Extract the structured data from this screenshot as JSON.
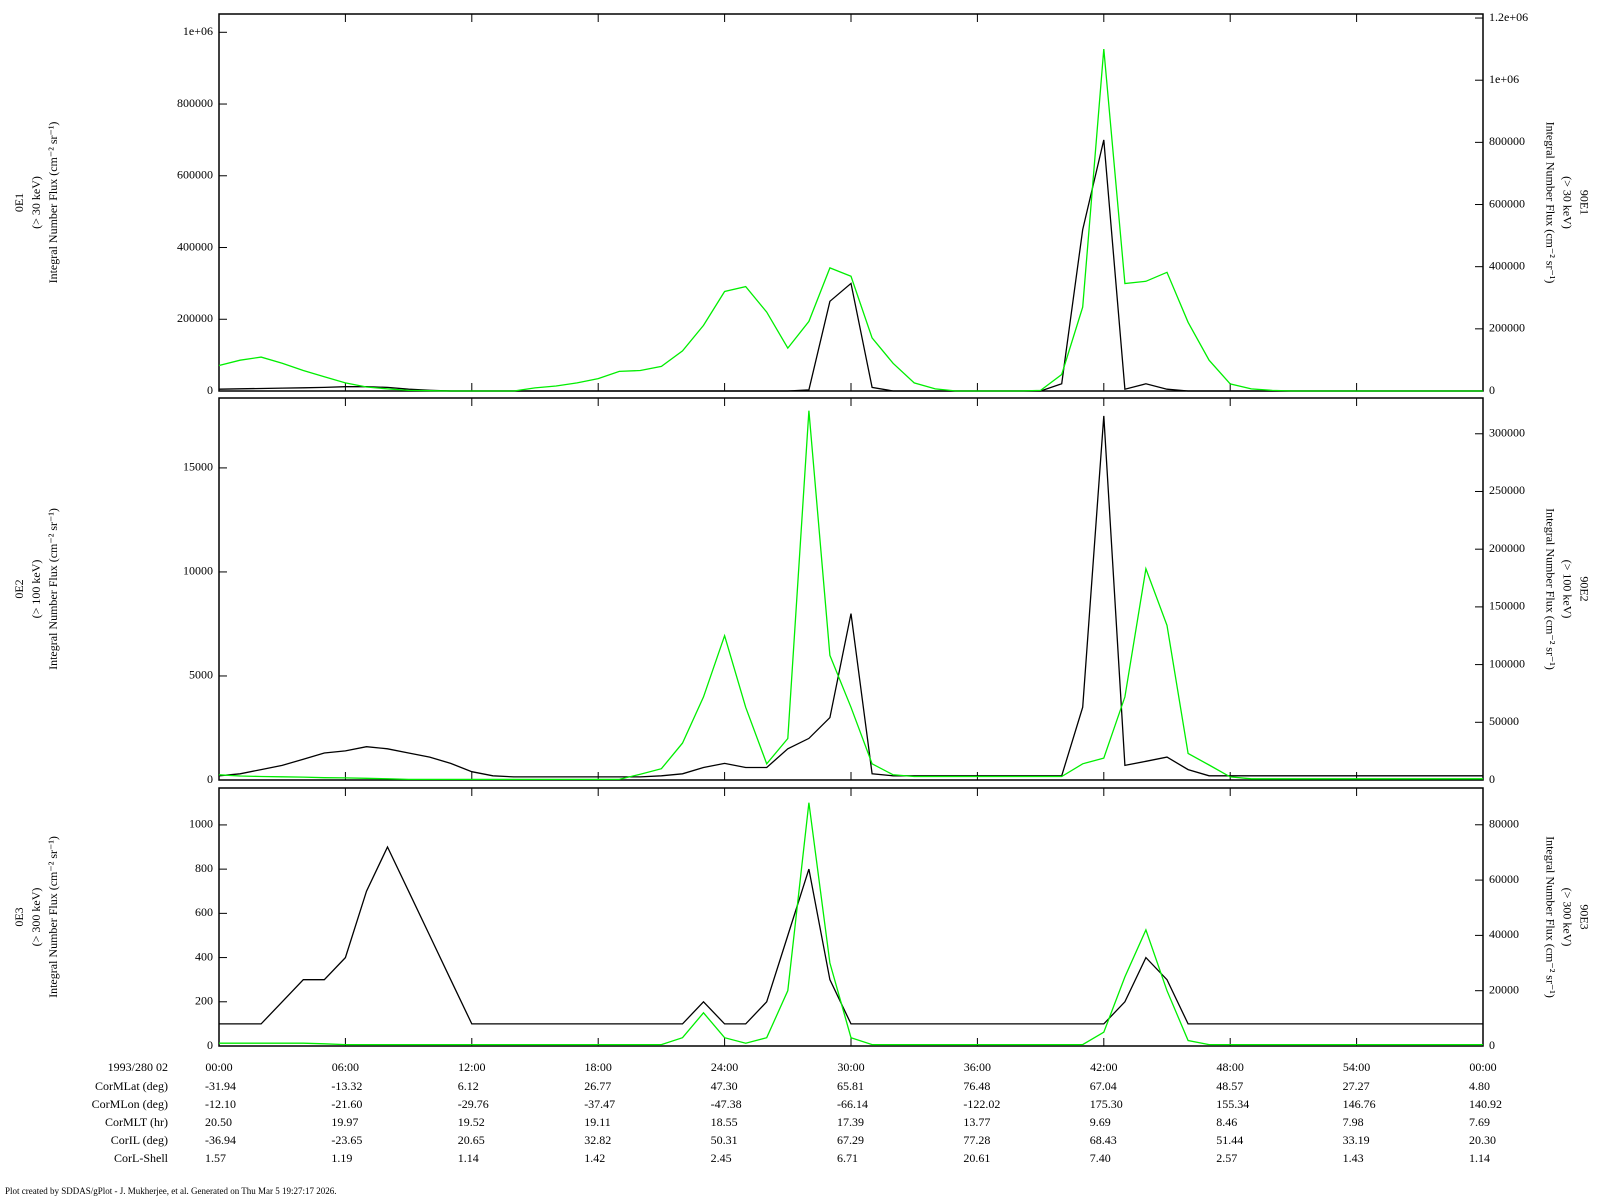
{
  "chart_data": [
    {
      "type": "line",
      "ylabel": [
        "0E1",
        "(> 30 keV)",
        "Integral Number Flux (cm⁻² sr⁻¹)"
      ],
      "y2label": [
        "90E1",
        "(> 30 keV)",
        "Integral Number Flux (cm⁻² sr⁻¹)"
      ],
      "x": [
        0,
        1,
        2,
        3,
        4,
        5,
        6,
        7,
        8,
        9,
        10,
        11,
        12,
        13,
        14,
        15,
        16,
        17,
        18,
        19,
        20,
        21,
        22,
        23,
        24,
        25,
        26,
        27,
        28,
        29,
        30,
        31,
        32,
        33,
        34,
        35,
        36,
        37,
        38,
        39,
        40,
        41,
        42,
        43,
        44,
        45,
        46,
        47,
        48,
        49,
        50,
        51,
        52,
        53,
        54,
        55,
        56,
        57,
        58,
        59,
        60
      ],
      "xlim": [
        0,
        60
      ],
      "xticks": [
        0,
        6,
        12,
        18,
        24,
        30,
        36,
        42,
        48,
        54,
        60
      ],
      "ylim": [
        0,
        1051000
      ],
      "yticks": [
        0,
        200000,
        400000,
        600000,
        800000,
        {
          "value": 1000000,
          "label": "1e+06"
        }
      ],
      "y2lim": [
        0,
        1213000
      ],
      "y2ticks": [
        0,
        200000,
        400000,
        600000,
        800000,
        {
          "value": 1000000,
          "label": "1e+06"
        },
        {
          "value": 1200000,
          "label": "1.2e+06"
        }
      ],
      "series": [
        {
          "name": "0E1",
          "color": "#000000",
          "values": [
            5000,
            6000,
            7000,
            8000,
            9000,
            10000,
            12000,
            12000,
            10000,
            5000,
            2000,
            0,
            0,
            0,
            0,
            0,
            0,
            0,
            0,
            0,
            0,
            0,
            0,
            0,
            0,
            0,
            0,
            0,
            3000,
            250000,
            300000,
            10000,
            0,
            0,
            0,
            0,
            0,
            0,
            0,
            0,
            20000,
            450000,
            700000,
            5000,
            20000,
            5000,
            0,
            0,
            0,
            0,
            0,
            0,
            0,
            0,
            0,
            0,
            0,
            0,
            0,
            0,
            0
          ]
        },
        {
          "name": "90E1",
          "color": "#00ee00",
          "axis": "y2",
          "values": [
            82000,
            99000,
            109000,
            89000,
            66000,
            46000,
            26000,
            13000,
            6600,
            2000,
            1000,
            0,
            0,
            0,
            0,
            10000,
            16000,
            26000,
            40000,
            63000,
            66000,
            79000,
            129000,
            211000,
            320000,
            336000,
            254000,
            138000,
            224000,
            396000,
            369000,
            171000,
            89000,
            26000,
            6600,
            0,
            0,
            0,
            0,
            2000,
            53000,
            270000,
            1100000,
            346000,
            353000,
            382000,
            221000,
            99000,
            23000,
            6600,
            2000,
            0,
            0,
            0,
            0,
            0,
            0,
            0,
            0,
            0,
            0
          ]
        }
      ]
    },
    {
      "type": "line",
      "ylabel": [
        "0E2",
        "(> 100 keV)",
        "Integral Number Flux (cm⁻² sr⁻¹)"
      ],
      "y2label": [
        "90E2",
        "(> 100 keV)",
        "Integral Number Flux (cm⁻² sr⁻¹)"
      ],
      "x": [
        0,
        1,
        2,
        3,
        4,
        5,
        6,
        7,
        8,
        9,
        10,
        11,
        12,
        13,
        14,
        15,
        16,
        17,
        18,
        19,
        20,
        21,
        22,
        23,
        24,
        25,
        26,
        27,
        28,
        29,
        30,
        31,
        32,
        33,
        34,
        35,
        36,
        37,
        38,
        39,
        40,
        41,
        42,
        43,
        44,
        45,
        46,
        47,
        48,
        49,
        50,
        51,
        52,
        53,
        54,
        55,
        56,
        57,
        58,
        59,
        60
      ],
      "xlim": [
        0,
        60
      ],
      "xticks": [
        0,
        6,
        12,
        18,
        24,
        30,
        36,
        42,
        48,
        54,
        60
      ],
      "ylim": [
        0,
        18360
      ],
      "yticks": [
        0,
        5000,
        10000,
        15000
      ],
      "y2lim": [
        0,
        331000
      ],
      "y2ticks": [
        0,
        50000,
        100000,
        150000,
        200000,
        250000,
        300000
      ],
      "series": [
        {
          "name": "0E2",
          "color": "#000000",
          "values": [
            200,
            300,
            500,
            700,
            1000,
            1300,
            1400,
            1600,
            1500,
            1300,
            1100,
            800,
            400,
            200,
            150,
            150,
            150,
            150,
            150,
            150,
            150,
            200,
            300,
            600,
            800,
            600,
            600,
            1500,
            2000,
            3000,
            8000,
            300,
            200,
            200,
            200,
            200,
            200,
            200,
            200,
            200,
            200,
            3500,
            17500,
            700,
            900,
            1100,
            500,
            200,
            200,
            200,
            200,
            200,
            200,
            200,
            200,
            200,
            200,
            200,
            200,
            200,
            200
          ]
        },
        {
          "name": "90E2",
          "color": "#00ee00",
          "axis": "y2",
          "values": [
            4500,
            3500,
            3000,
            2800,
            2500,
            2000,
            1800,
            1500,
            1000,
            500,
            500,
            500,
            500,
            500,
            500,
            500,
            500,
            500,
            500,
            500,
            5000,
            9800,
            32000,
            72000,
            125000,
            63000,
            14000,
            36000,
            320000,
            108000,
            63000,
            14000,
            4500,
            3000,
            3000,
            3000,
            3000,
            3000,
            3000,
            3000,
            3000,
            14000,
            19000,
            72000,
            183000,
            134000,
            23000,
            13000,
            2700,
            1000,
            1000,
            1000,
            1000,
            1000,
            1000,
            1000,
            1000,
            1000,
            1000,
            1000,
            1000
          ]
        }
      ]
    },
    {
      "type": "line",
      "ylabel": [
        "0E3",
        "(> 300 keV)",
        "Integral Number Flux (cm⁻² sr⁻¹)"
      ],
      "y2label": [
        "90E3",
        "(> 300 keV)",
        "Integral Number Flux (cm⁻² sr⁻¹)"
      ],
      "x": [
        0,
        1,
        2,
        3,
        4,
        5,
        6,
        7,
        8,
        9,
        10,
        11,
        12,
        13,
        14,
        15,
        16,
        17,
        18,
        19,
        20,
        21,
        22,
        23,
        24,
        25,
        26,
        27,
        28,
        29,
        30,
        31,
        32,
        33,
        34,
        35,
        36,
        37,
        38,
        39,
        40,
        41,
        42,
        43,
        44,
        45,
        46,
        47,
        48,
        49,
        50,
        51,
        52,
        53,
        54,
        55,
        56,
        57,
        58,
        59,
        60
      ],
      "xlim": [
        0,
        60
      ],
      "xlabel": "1993/280 02",
      "xticks": [
        {
          "value": 0,
          "label": "00:00"
        },
        {
          "value": 6,
          "label": "06:00"
        },
        {
          "value": 12,
          "label": "12:00"
        },
        {
          "value": 18,
          "label": "18:00"
        },
        {
          "value": 24,
          "label": "24:00"
        },
        {
          "value": 30,
          "label": "30:00"
        },
        {
          "value": 36,
          "label": "36:00"
        },
        {
          "value": 42,
          "label": "42:00"
        },
        {
          "value": 48,
          "label": "48:00"
        },
        {
          "value": 54,
          "label": "54:00"
        },
        {
          "value": 60,
          "label": "00:00"
        }
      ],
      "ylim": [
        0,
        1167
      ],
      "yticks": [
        0,
        200,
        400,
        600,
        800,
        1000
      ],
      "y2lim": [
        0,
        93300
      ],
      "y2ticks": [
        0,
        20000,
        40000,
        60000,
        80000
      ],
      "series": [
        {
          "name": "0E3",
          "color": "#000000",
          "values": [
            100,
            100,
            100,
            200,
            300,
            300,
            400,
            700,
            900,
            700,
            500,
            300,
            100,
            100,
            100,
            100,
            100,
            100,
            100,
            100,
            100,
            100,
            100,
            200,
            100,
            100,
            200,
            500,
            800,
            300,
            100,
            100,
            100,
            100,
            100,
            100,
            100,
            100,
            100,
            100,
            100,
            100,
            100,
            200,
            400,
            300,
            100,
            100,
            100,
            100,
            100,
            100,
            100,
            100,
            100,
            100,
            100,
            100,
            100,
            100,
            100
          ]
        },
        {
          "name": "90E3",
          "color": "#00ee00",
          "axis": "y2",
          "values": [
            1000,
            1000,
            1000,
            1000,
            1000,
            800,
            500,
            500,
            500,
            500,
            500,
            500,
            500,
            500,
            500,
            500,
            500,
            500,
            500,
            500,
            500,
            500,
            3000,
            12000,
            3000,
            1000,
            3000,
            20000,
            88000,
            30000,
            3000,
            500,
            500,
            500,
            500,
            500,
            500,
            500,
            500,
            500,
            500,
            500,
            5000,
            25000,
            42000,
            20000,
            2000,
            500,
            500,
            500,
            500,
            500,
            500,
            500,
            500,
            500,
            500,
            500,
            500,
            500,
            500
          ]
        }
      ]
    }
  ],
  "ephemeris": [
    {
      "label": "CorMLat (deg)",
      "values": [
        "-31.94",
        "-13.32",
        "6.12",
        "26.77",
        "47.30",
        "65.81",
        "76.48",
        "67.04",
        "48.57",
        "27.27",
        "4.80"
      ]
    },
    {
      "label": "CorMLon (deg)",
      "values": [
        "-12.10",
        "-21.60",
        "-29.76",
        "-37.47",
        "-47.38",
        "-66.14",
        "-122.02",
        "175.30",
        "155.34",
        "146.76",
        "140.92"
      ]
    },
    {
      "label": "CorMLT (hr)",
      "values": [
        "20.50",
        "19.97",
        "19.52",
        "19.11",
        "18.55",
        "17.39",
        "13.77",
        "9.69",
        "8.46",
        "7.98",
        "7.69"
      ]
    },
    {
      "label": "CorIL (deg)",
      "values": [
        "-36.94",
        "-23.65",
        "20.65",
        "32.82",
        "50.31",
        "67.29",
        "77.28",
        "68.43",
        "51.44",
        "33.19",
        "20.30"
      ]
    },
    {
      "label": "CorL-Shell",
      "values": [
        "1.57",
        "1.19",
        "1.14",
        "1.42",
        "2.45",
        "6.71",
        "20.61",
        "7.40",
        "2.57",
        "1.43",
        "1.14"
      ]
    }
  ],
  "footer": "Plot created by SDDAS/gPlot - J. Mukherjee, et al.  Generated on Thu Mar 5 19:27:17 2026."
}
